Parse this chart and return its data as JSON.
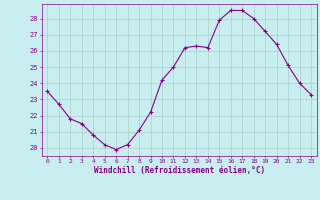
{
  "x": [
    0,
    1,
    2,
    3,
    4,
    5,
    6,
    7,
    8,
    9,
    10,
    11,
    12,
    13,
    14,
    15,
    16,
    17,
    18,
    19,
    20,
    21,
    22,
    23
  ],
  "y": [
    23.5,
    22.7,
    21.8,
    21.5,
    20.8,
    20.2,
    19.9,
    20.2,
    21.1,
    22.2,
    24.2,
    25.0,
    26.2,
    26.3,
    26.2,
    27.9,
    28.5,
    28.5,
    28.0,
    27.2,
    26.4,
    25.1,
    24.0,
    23.3
  ],
  "line_color": "#880088",
  "marker": "+",
  "bg_color": "#c8eef0",
  "grid_color": "#aacccc",
  "xlabel": "Windchill (Refroidissement éolien,°C)",
  "xlabel_color": "#880088",
  "tick_color": "#880088",
  "xlim": [
    -0.5,
    23.5
  ],
  "ylim": [
    19.5,
    28.9
  ],
  "yticks": [
    20,
    21,
    22,
    23,
    24,
    25,
    26,
    27,
    28
  ],
  "xticks": [
    0,
    1,
    2,
    3,
    4,
    5,
    6,
    7,
    8,
    9,
    10,
    11,
    12,
    13,
    14,
    15,
    16,
    17,
    18,
    19,
    20,
    21,
    22,
    23
  ],
  "figsize": [
    3.2,
    2.0
  ],
  "dpi": 100
}
